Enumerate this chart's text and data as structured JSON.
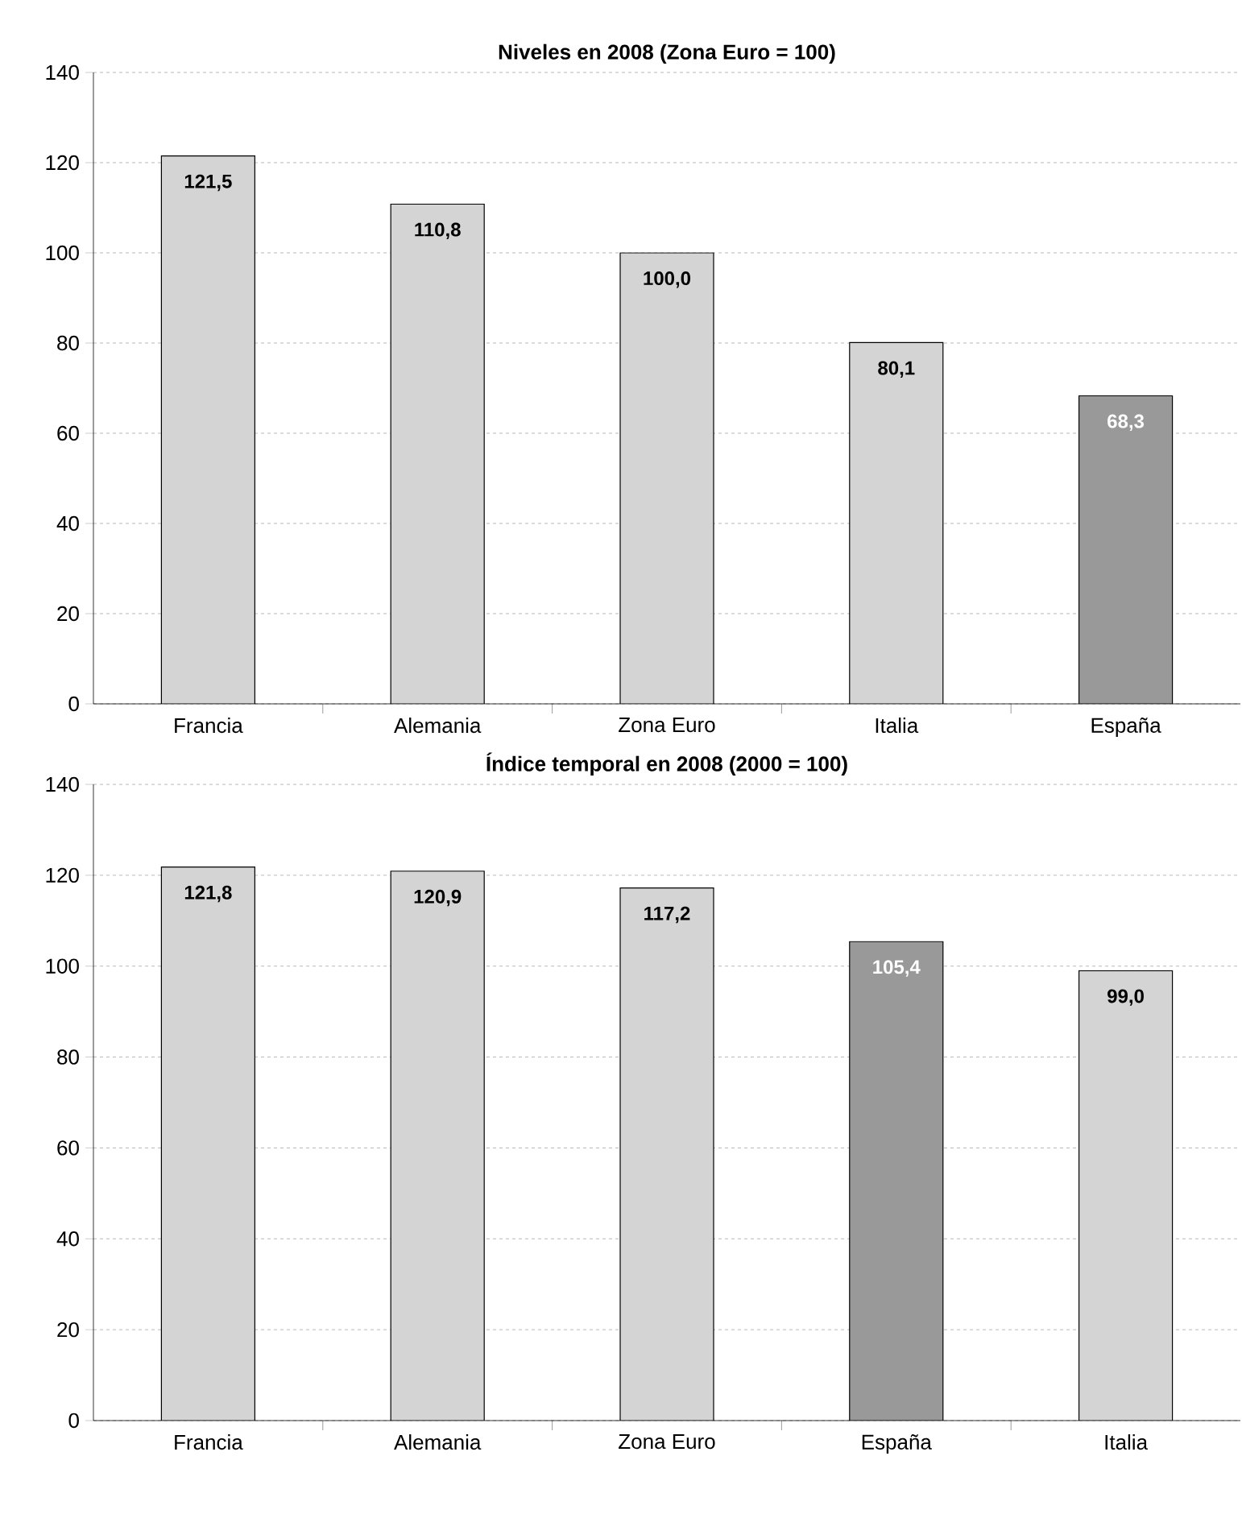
{
  "chart_data": [
    {
      "type": "bar",
      "title": "Niveles en 2008 (Zona Euro = 100)",
      "categories": [
        "Francia",
        "Alemania",
        "Zona Euro",
        "Italia",
        "España"
      ],
      "values": [
        121.5,
        110.8,
        100.0,
        80.1,
        68.3
      ],
      "colors": [
        "#d4d4d4",
        "#d4d4d4",
        "#d4d4d4",
        "#d4d4d4",
        "#999999"
      ],
      "value_labels": [
        "121,5",
        "110,8",
        "100,0",
        "80,1",
        "68,3"
      ],
      "ylim": [
        0,
        140
      ],
      "yticks": [
        0,
        20,
        40,
        60,
        80,
        100,
        120,
        140
      ],
      "grid": "y"
    },
    {
      "type": "bar",
      "title": "Índice temporal en 2008 (2000 = 100)",
      "categories": [
        "Francia",
        "Alemania",
        "Zona Euro",
        "España",
        "Italia"
      ],
      "values": [
        121.8,
        120.9,
        117.2,
        105.4,
        99.0
      ],
      "colors": [
        "#d4d4d4",
        "#d4d4d4",
        "#d4d4d4",
        "#999999",
        "#d4d4d4"
      ],
      "value_labels": [
        "121,8",
        "120,9",
        "117,2",
        "105,4",
        "99,0"
      ],
      "ylim": [
        0,
        140
      ],
      "yticks": [
        0,
        20,
        40,
        60,
        80,
        100,
        120,
        140
      ],
      "grid": "y"
    }
  ]
}
